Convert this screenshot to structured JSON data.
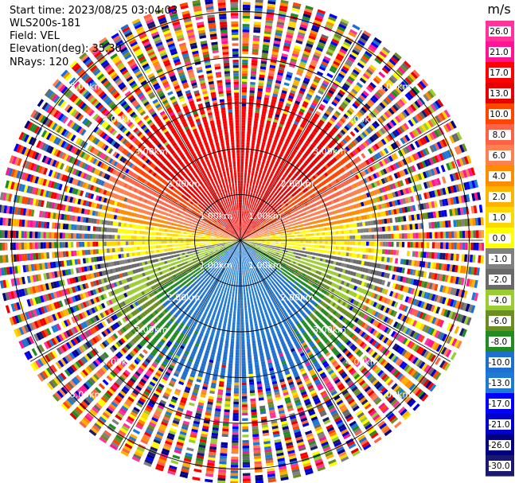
{
  "header": {
    "start_time": "Start time: 2023/08/25 03:04:03",
    "instrument": "WLS200s-181",
    "field": "Field: VEL",
    "elevation": "Elevation(deg): 35.30",
    "nrays": "NRays: 120"
  },
  "colorbar": {
    "unit": "m/s",
    "ticks": [
      "26.0",
      "21.0",
      "17.0",
      "13.0",
      "10.0",
      "8.0",
      "6.0",
      "4.0",
      "2.0",
      "1.0",
      "0.0",
      "-1.0",
      "-2.0",
      "-4.0",
      "-6.0",
      "-8.0",
      "-10.0",
      "-13.0",
      "-17.0",
      "-21.0",
      "-26.0",
      "-30.0"
    ],
    "colors": [
      "#ff3399",
      "#ff1493",
      "#ff0000",
      "#e60000",
      "#ff4500",
      "#ff6347",
      "#ff7f50",
      "#ff8c00",
      "#ffb300",
      "#ffd700",
      "#ffff00",
      "#808080",
      "#696969",
      "#9acd32",
      "#6b8e23",
      "#228b22",
      "#1e6fd0",
      "#1f7ad6",
      "#0000ff",
      "#0000cd",
      "#000080",
      "#191970"
    ]
  },
  "chart_data": {
    "type": "ppi",
    "field": "VEL",
    "unit": "m/s",
    "nrays": 120,
    "range_ring_labels": [
      "1.00km",
      "2.00km",
      "3.00km",
      "4.00km",
      "5.00km"
    ],
    "range_rings_km": [
      1,
      2,
      3,
      4,
      5
    ],
    "max_range_km": 5.3,
    "velocity_pattern": {
      "north_sector": "positive (10 to 17 m/s)",
      "east_west_flanks": "2 to 6 m/s",
      "near_horizon": "-1 to 1 m/s",
      "south_sector": "negative (-6 to -10 m/s)",
      "outer_ring_beyond_km": 3.2
    }
  }
}
